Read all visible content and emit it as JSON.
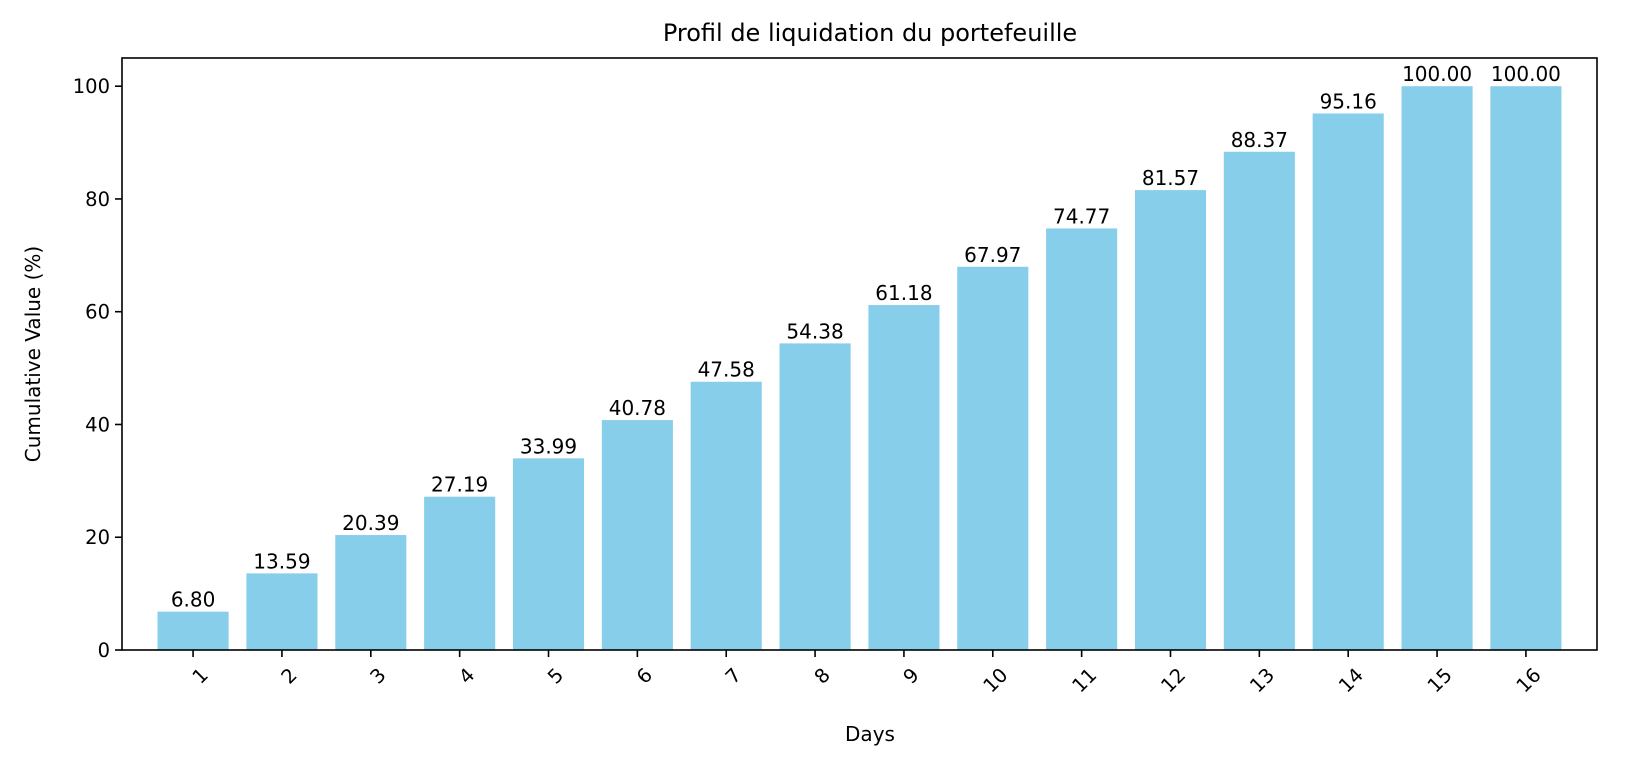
{
  "chart_data": {
    "type": "bar",
    "title": "Profil de liquidation du portefeuille",
    "xlabel": "Days",
    "ylabel": "Cumulative Value (%)",
    "categories": [
      "1",
      "2",
      "3",
      "4",
      "5",
      "6",
      "7",
      "8",
      "9",
      "10",
      "11",
      "12",
      "13",
      "14",
      "15",
      "16"
    ],
    "values": [
      6.8,
      13.59,
      20.39,
      27.19,
      33.99,
      40.78,
      47.58,
      54.38,
      61.18,
      67.97,
      74.77,
      81.57,
      88.37,
      95.16,
      100.0,
      100.0
    ],
    "data_labels": [
      "6.80",
      "13.59",
      "20.39",
      "27.19",
      "33.99",
      "40.78",
      "47.58",
      "54.38",
      "61.18",
      "67.97",
      "74.77",
      "81.57",
      "88.37",
      "95.16",
      "100.00",
      "100.00"
    ],
    "ylim": [
      0,
      105
    ],
    "yticks": [
      0,
      20,
      40,
      60,
      80,
      100
    ],
    "bar_color": "#87CEEB",
    "grid": false,
    "xtick_rotation": "45 degrees"
  }
}
